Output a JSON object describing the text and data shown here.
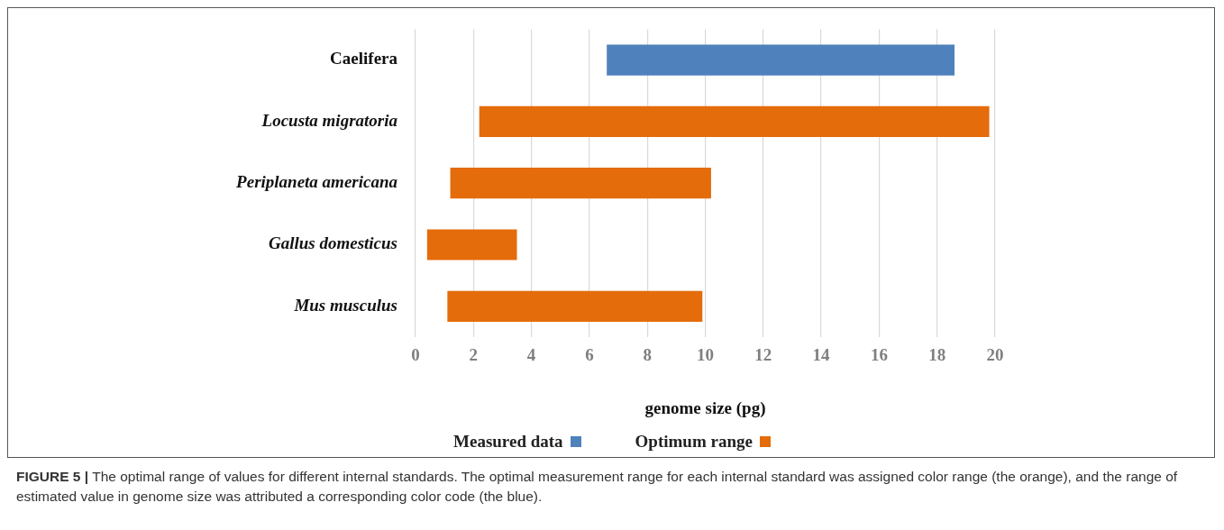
{
  "chart_data": {
    "type": "bar",
    "orientation": "horizontal",
    "xlabel": "genome size (pg)",
    "categories": [
      "Caelifera",
      "Locusta migratoria",
      "Periplaneta americana",
      "Gallus domesticus",
      "Mus musculus"
    ],
    "series": [
      {
        "name": "Measured data",
        "color": "#4f81bd",
        "base": [
          6.6,
          null,
          null,
          null,
          null
        ],
        "values": [
          12.0,
          null,
          null,
          null,
          null
        ]
      },
      {
        "name": "Optimum range",
        "color": "#e46c0a",
        "base": [
          null,
          2.2,
          1.2,
          0.4,
          1.1
        ],
        "values": [
          null,
          17.6,
          9.0,
          3.1,
          8.8
        ]
      }
    ],
    "xlim": [
      0,
      20
    ],
    "xticks": [
      0,
      2,
      4,
      6,
      8,
      10,
      12,
      14,
      16,
      18,
      20
    ],
    "grid": "x",
    "legend": "bottom",
    "annotations": [
      "FIGURE 5 | The optimal range of values for different internal standards. The optimal measurement range for each internal standard was assigned color range (the orange), and the range of estimated value in genome size was attributed a corresponding color code (the blue)."
    ]
  }
}
